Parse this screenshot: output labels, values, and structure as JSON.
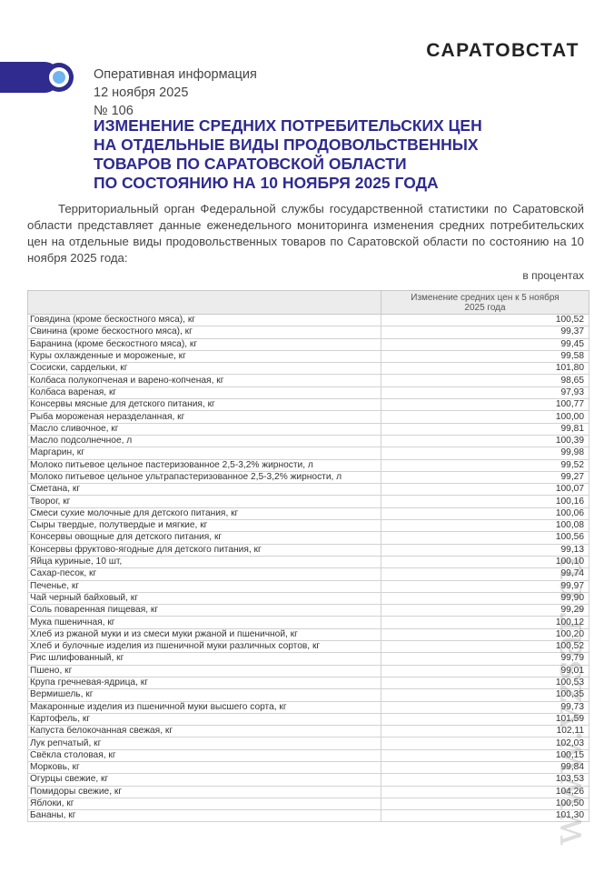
{
  "header": {
    "brand": "САРАТОВСТАТ",
    "doc_type": "Оперативная информация",
    "date": "12 ноября 2025",
    "number": "№ 106",
    "title_lines": [
      "ИЗМЕНЕНИЕ СРЕДНИХ ПОТРЕБИТЕЛЬСКИХ ЦЕН",
      "НА ОТДЕЛЬНЫЕ ВИДЫ ПРОДОВОЛЬСТВЕННЫХ",
      "ТОВАРОВ ПО САРАТОВСКОЙ ОБЛАСТИ",
      "ПО СОСТОЯНИЮ НА 10 НОЯБРЯ 2025 ГОДА"
    ]
  },
  "intro": "Территориальный орган Федеральной службы государственной статистики по Саратовской области представляет данные еженедельного мониторинга изменения средних потребительских цен на отдельные виды продовольственных товаров по Саратовской области по состоянию на 10 ноября 2025 года:",
  "unit": "в процентах",
  "table": {
    "header": [
      "",
      "Изменение средних цен к 5 ноября 2025 года"
    ],
    "rows": [
      [
        "Говядина (кроме бескостного мяса), кг",
        "100,52"
      ],
      [
        "Свинина (кроме бескостного мяса), кг",
        "99,37"
      ],
      [
        "Баранина (кроме бескостного мяса), кг",
        "99,45"
      ],
      [
        "Куры охлажденные и мороженые, кг",
        "99,58"
      ],
      [
        "Сосиски, сардельки, кг",
        "101,80"
      ],
      [
        "Колбаса полукопченая и варено-копченая, кг",
        "98,65"
      ],
      [
        "Колбаса вареная, кг",
        "97,93"
      ],
      [
        "Консервы мясные для детского питания, кг",
        "100,77"
      ],
      [
        "Рыба мороженая неразделанная, кг",
        "100,00"
      ],
      [
        "Масло сливочное, кг",
        "99,81"
      ],
      [
        "Масло подсолнечное, л",
        "100,39"
      ],
      [
        "Маргарин, кг",
        "99,98"
      ],
      [
        "Молоко питьевое цельное пастеризованное 2,5-3,2% жирности, л",
        "99,52"
      ],
      [
        "Молоко питьевое цельное ультрапастеризованное 2,5-3,2% жирности, л",
        "99,27"
      ],
      [
        "Сметана, кг",
        "100,07"
      ],
      [
        "Творог, кг",
        "100,16"
      ],
      [
        "Смеси сухие молочные для детского питания, кг",
        "100,06"
      ],
      [
        "Сыры твердые, полутвердые и мягкие, кг",
        "100,08"
      ],
      [
        "Консервы овощные для детского питания, кг",
        "100,56"
      ],
      [
        "Консервы фруктово-ягодные для детского питания, кг",
        "99,13"
      ],
      [
        "Яйца куриные, 10 шт,",
        "100,10"
      ],
      [
        "Сахар-песок, кг",
        "99,74"
      ],
      [
        "Печенье, кг",
        "99,97"
      ],
      [
        "Чай черный байховый, кг",
        "99,90"
      ],
      [
        "Соль поваренная пищевая, кг",
        "99,29"
      ],
      [
        "Мука пшеничная, кг",
        "100,12"
      ],
      [
        "Хлеб из ржаной муки и из смеси муки ржаной и пшеничной, кг",
        "100,20"
      ],
      [
        "Хлеб и булочные изделия из пшеничной муки различных сортов, кг",
        "100,52"
      ],
      [
        "Рис шлифованный, кг",
        "99,79"
      ],
      [
        "Пшено, кг",
        "99,01"
      ],
      [
        "Крупа гречневая-ядрица, кг",
        "100,53"
      ],
      [
        "Вермишель, кг",
        "100,35"
      ],
      [
        "Макаронные изделия из пшеничной муки высшего сорта, кг",
        "99,73"
      ],
      [
        "Картофель, кг",
        "101,59"
      ],
      [
        "Капуста белокочанная свежая, кг",
        "102,11"
      ],
      [
        "Лук репчатый, кг",
        "102,03"
      ],
      [
        "Свёкла столовая, кг",
        "100,15"
      ],
      [
        "Морковь, кг",
        "99,84"
      ],
      [
        "Огурцы свежие, кг",
        "103,53"
      ],
      [
        "Помидоры свежие, кг",
        "104,26"
      ],
      [
        "Яблоки, кг",
        "100,50"
      ],
      [
        "Бананы, кг",
        "101,30"
      ]
    ]
  },
  "watermark": "www.vzsar.ru",
  "colors": {
    "accent": "#2f2b8f",
    "logo_dot": "#6eb4f0"
  }
}
